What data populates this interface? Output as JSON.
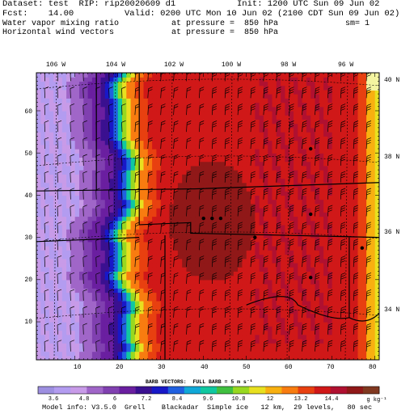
{
  "header": {
    "dataset": "Dataset: test  RIP: rip20020609 d1",
    "init": "Init: 1200 UTC Sun 09 Jun 02",
    "fcst": "Fcst:    14.00",
    "valid": "Valid: 0200 UTC Mon 10 Jun 02 (2100 CDT Sun 09 Jun 02)",
    "field1": "Water vapor mixing ratio",
    "field1_level": "at pressure =  850 hPa",
    "sm": "sm= 1",
    "field2": "Horizontal wind vectors",
    "field2_level": "at pressure =  850 hPa"
  },
  "map": {
    "lon_labels": [
      "106 W",
      "104 W",
      "102 W",
      "100 W",
      "98 W",
      "96 W"
    ],
    "lat_labels": [
      "40 N",
      "38 N",
      "36 N",
      "34 N"
    ],
    "x_ticks": [
      "10",
      "20",
      "30",
      "40",
      "50",
      "60",
      "70",
      "80"
    ],
    "y_ticks": [
      "10",
      "20",
      "30",
      "40",
      "50",
      "60"
    ],
    "markers": [
      [
        40,
        34.5
      ],
      [
        42,
        34.5
      ],
      [
        44,
        34.5
      ],
      [
        52,
        30
      ],
      [
        65,
        51
      ],
      [
        65,
        35.5
      ],
      [
        65,
        20.5
      ],
      [
        77,
        27.5
      ]
    ]
  },
  "legend": {
    "barbs_title": "BARB VECTORS:  FULL BARB = 5 m s⁻¹",
    "colorbar_labels": [
      "3.6",
      "4.8",
      "6",
      "7.2",
      "8.4",
      "9.6",
      "10.8",
      "12",
      "13.2",
      "14.4"
    ],
    "units": "g kg⁻¹",
    "colors": [
      "#9d8fe0",
      "#b39cf0",
      "#c89be8",
      "#a066c8",
      "#8040b0",
      "#6a1fa0",
      "#3a1090",
      "#1818c8",
      "#2060e0",
      "#10a8d8",
      "#10c8a0",
      "#40c040",
      "#98d820",
      "#e8e020",
      "#f8b010",
      "#f87c10",
      "#e84010",
      "#d01818",
      "#b01030",
      "#901818",
      "#803820"
    ]
  },
  "footer": {
    "model_info": "Model info: V3.5.0  Grell    Blackadar  Simple ice   12 km,  29 levels,   80 sec"
  }
}
